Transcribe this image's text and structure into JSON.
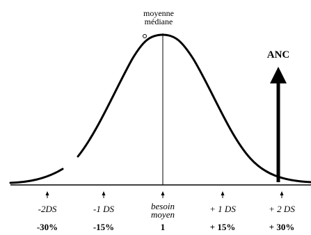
{
  "header": {
    "mean_label": "moyenne",
    "median_label": "médiane"
  },
  "anc": {
    "label": "ANC"
  },
  "ticks": [
    {
      "label": "-2DS",
      "sub": "",
      "value": "-30%"
    },
    {
      "label": "-1 DS",
      "sub": "",
      "value": "-15%"
    },
    {
      "label": "besoin",
      "sub": "moyen",
      "value": "1"
    },
    {
      "label": "+ 1 DS",
      "sub": "",
      "value": "+ 15%"
    },
    {
      "label": "+ 2 DS",
      "sub": "",
      "value": "+ 30%"
    }
  ],
  "colors": {
    "line": "#000000",
    "background": "#ffffff"
  }
}
